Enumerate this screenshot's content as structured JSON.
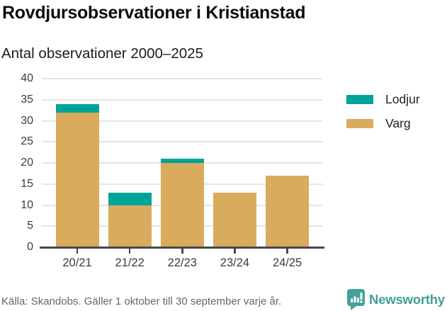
{
  "header": {
    "title": "Rovdjursobservationer i Kristianstad",
    "subtitle": "Antal observationer 2000–2025"
  },
  "chart_data": {
    "type": "bar",
    "stacked": true,
    "title": "Rovdjursobservationer i Kristianstad",
    "subtitle": "Antal observationer 2000–2025",
    "categories": [
      "20/21",
      "21/22",
      "22/23",
      "23/24",
      "24/25"
    ],
    "series": [
      {
        "name": "Lodjur",
        "color": "#00a39a",
        "values": [
          2,
          3,
          1,
          0,
          0
        ]
      },
      {
        "name": "Varg",
        "color": "#d9ab5c",
        "values": [
          32,
          10,
          20,
          13,
          17
        ]
      }
    ],
    "totals": [
      34,
      13,
      21,
      13,
      17
    ],
    "xlabel": "",
    "ylabel": "",
    "ylim": [
      0,
      40
    ],
    "yticks": [
      0,
      5,
      10,
      15,
      20,
      25,
      30,
      35,
      40
    ],
    "grid": true,
    "legend_position": "right"
  },
  "legend": {
    "items": [
      {
        "label": "Lodjur",
        "color": "#00a39a"
      },
      {
        "label": "Varg",
        "color": "#d9ab5c"
      }
    ]
  },
  "footer": {
    "source": "Källa: Skandobs. Gäller 1 oktober till 30 september varje år.",
    "brand": "Newsworthy",
    "brand_color": "#3f9e99",
    "logo_color": "#44a19b"
  }
}
